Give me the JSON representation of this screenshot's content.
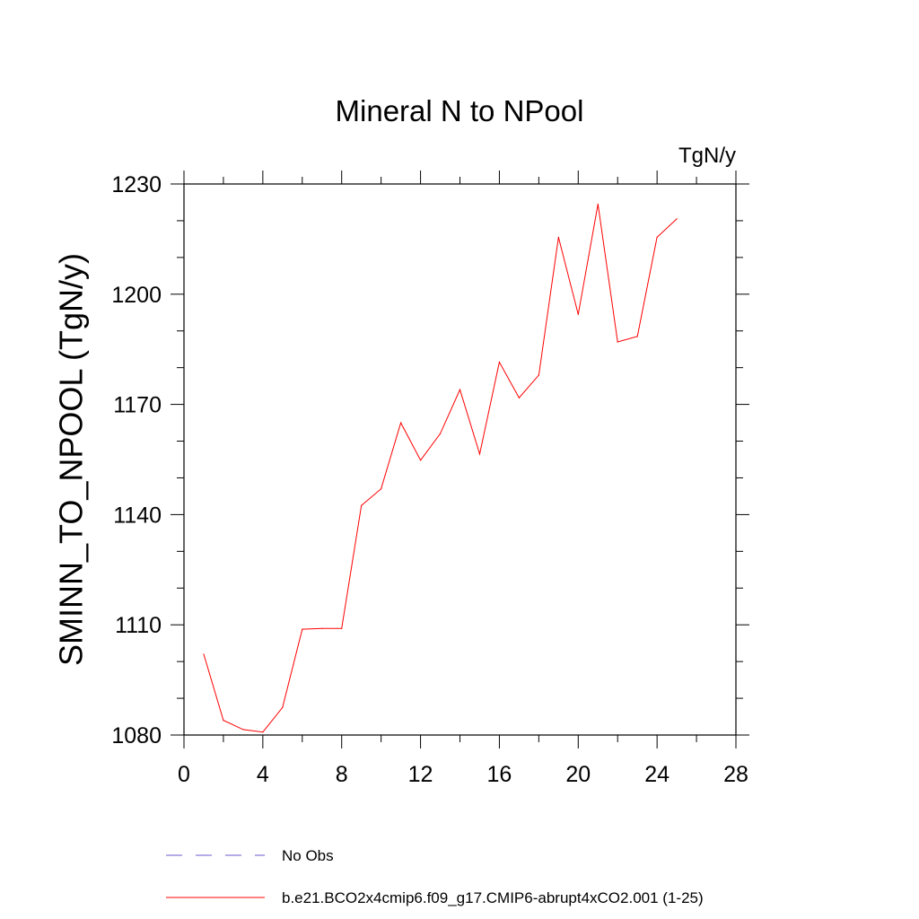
{
  "chart_data": {
    "type": "line",
    "title": "Mineral N to NPool",
    "units": "TgN/y",
    "xlabel": "",
    "ylabel": "SMINN_TO_NPOOL  (TgN/y)",
    "xlim": [
      0,
      28
    ],
    "ylim": [
      1080,
      1230
    ],
    "x_ticks": [
      "0",
      "4",
      "8",
      "12",
      "16",
      "20",
      "24",
      "28"
    ],
    "y_ticks": [
      "1080",
      "1110",
      "1140",
      "1170",
      "1200",
      "1230"
    ],
    "series": [
      {
        "name": "b.e21.BCO2x4cmip6.f09_g17.CMIP6-abrupt4xCO2.001 (1-25)",
        "color": "#ff0000",
        "dash": "solid",
        "x": [
          1,
          2,
          3,
          4,
          5,
          6,
          7,
          8,
          9,
          10,
          11,
          12,
          13,
          14,
          15,
          16,
          17,
          18,
          19,
          20,
          21,
          22,
          23,
          24,
          25
        ],
        "values": [
          1102.0,
          1084.0,
          1081.5,
          1080.8,
          1087.5,
          1108.8,
          1109.0,
          1109.0,
          1142.5,
          1147.0,
          1165.0,
          1154.8,
          1162.0,
          1174.0,
          1156.5,
          1181.5,
          1171.8,
          1178.0,
          1215.5,
          1194.5,
          1224.5,
          1187.0,
          1188.5,
          1215.5,
          1220.5
        ]
      }
    ],
    "legend": {
      "position": "bottom",
      "entries": [
        {
          "label": "No Obs",
          "color": "#6a5acd",
          "dash": "dashed"
        },
        {
          "label": "b.e21.BCO2x4cmip6.f09_g17.CMIP6-abrupt4xCO2.001 (1-25)",
          "color": "#ff0000",
          "dash": "solid"
        }
      ]
    }
  }
}
